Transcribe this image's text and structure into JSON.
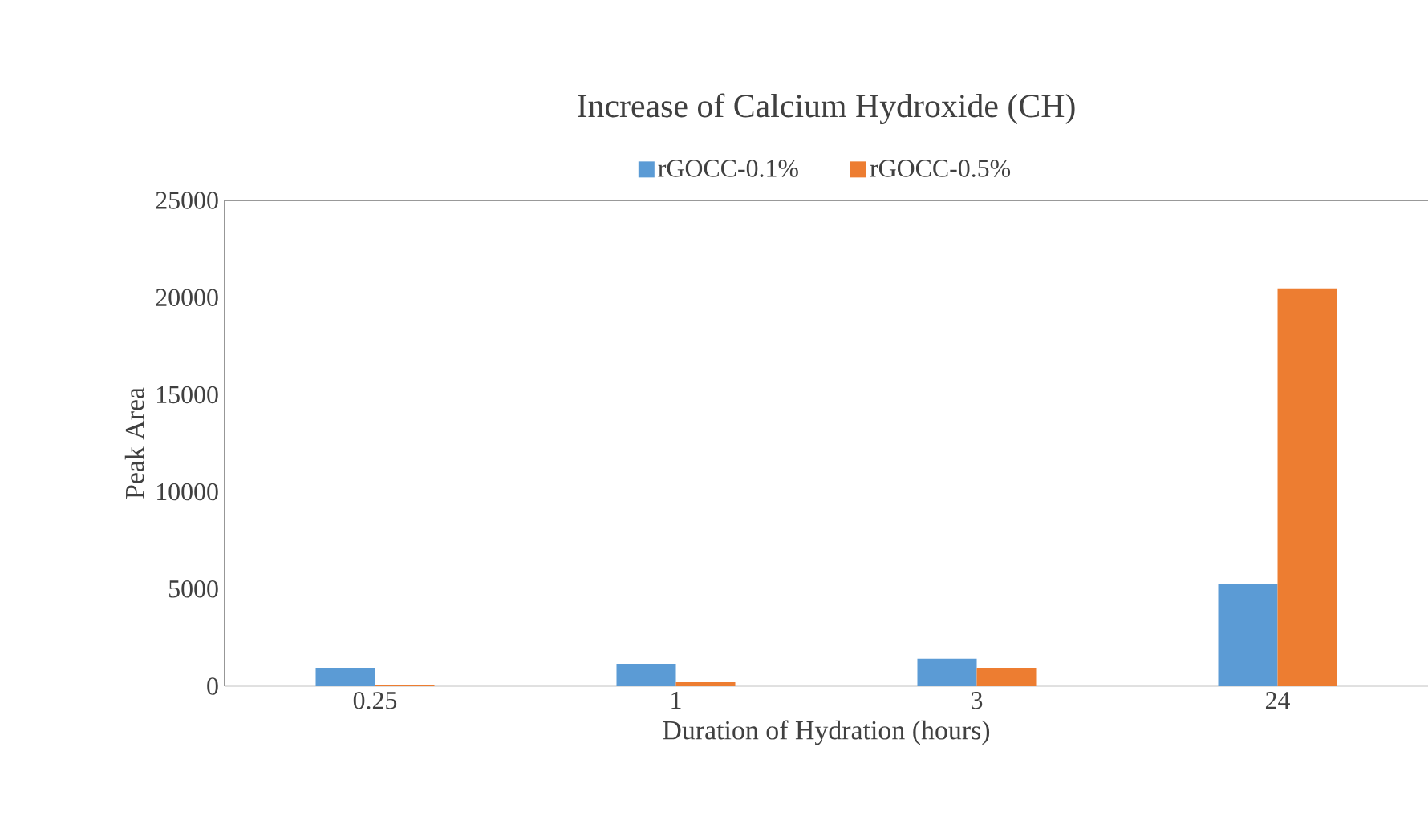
{
  "chart_data": {
    "type": "bar",
    "title": "Increase of Calcium Hydroxide (CH)",
    "xlabel": "Duration  of Hydration  (hours)",
    "ylabel": "Peak Area",
    "categories": [
      "0.25",
      "1",
      "3",
      "24"
    ],
    "series": [
      {
        "name": "rGOCC-0.1%",
        "color": "#5b9bd5",
        "values": [
          950,
          1120,
          1410,
          5280
        ]
      },
      {
        "name": "rGOCC-0.5%",
        "color": "#ed7d31",
        "values": [
          50,
          210,
          950,
          20470
        ]
      }
    ],
    "ylim": [
      0,
      25000
    ],
    "yticks": [
      0,
      5000,
      10000,
      15000,
      20000,
      25000
    ],
    "legend": "top",
    "grid": false
  }
}
